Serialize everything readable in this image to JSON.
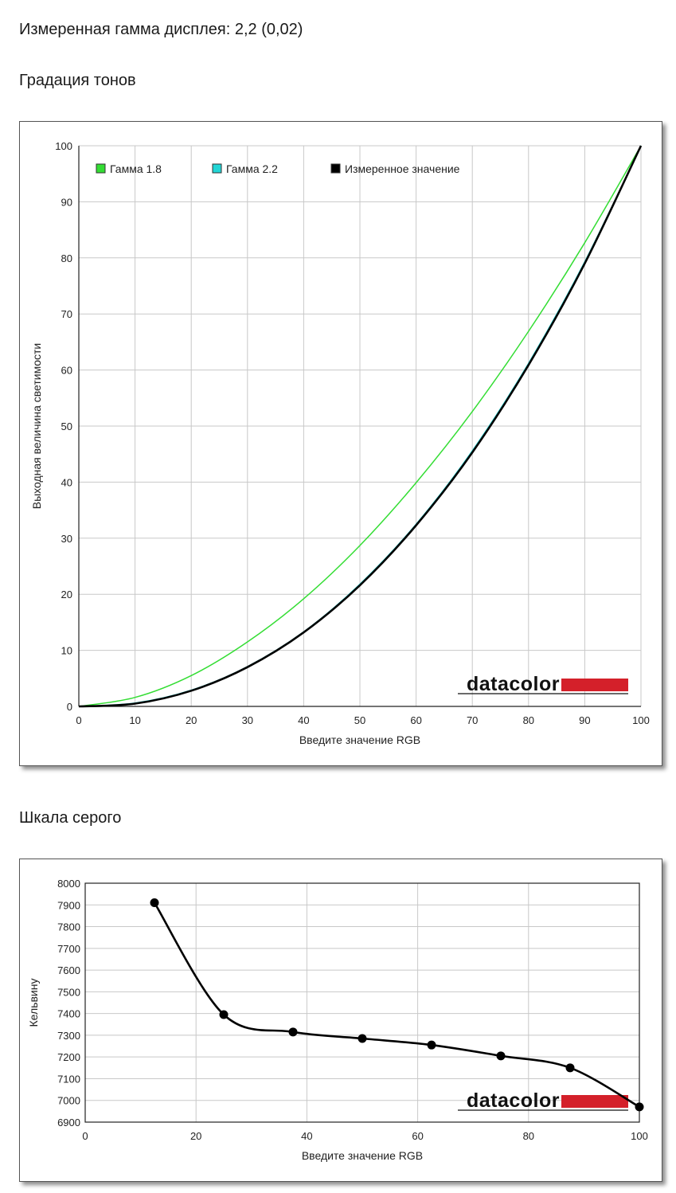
{
  "header": {
    "gamma_text": "Измеренная гамма дисплея: 2,2 (0,02)",
    "tone_heading": "Градация тонов",
    "gray_heading": "Шкала серого"
  },
  "colors": {
    "gamma18": "#33dd33",
    "gamma22": "#22d6d6",
    "measured": "#000000",
    "brand_red": "#d4202a"
  },
  "chart_data": [
    {
      "type": "line",
      "title": "",
      "xlabel": "Введите значение RGB",
      "ylabel": "Выходная величина светимости",
      "xlim": [
        0,
        100
      ],
      "ylim": [
        0,
        100
      ],
      "xticks": [
        "0",
        "10",
        "20",
        "30",
        "40",
        "50",
        "60",
        "70",
        "80",
        "90",
        "100"
      ],
      "yticks": [
        "0",
        "10",
        "20",
        "30",
        "40",
        "50",
        "60",
        "70",
        "80",
        "90",
        "100"
      ],
      "grid": true,
      "legend_position": "top-left",
      "logo": "datacolor",
      "series": [
        {
          "name": "Гамма 1.8",
          "color": "#33dd33",
          "x": [
            0,
            10,
            20,
            30,
            40,
            50,
            60,
            70,
            80,
            90,
            100
          ],
          "y": [
            0,
            1.6,
            5.5,
            11.5,
            19.2,
            28.7,
            39.9,
            52.6,
            66.9,
            82.7,
            100
          ]
        },
        {
          "name": "Гамма 2.2",
          "color": "#22d6d6",
          "x": [
            0,
            10,
            20,
            30,
            40,
            50,
            60,
            70,
            80,
            90,
            100
          ],
          "y": [
            0,
            0.6,
            2.9,
            7.1,
            13.3,
            21.8,
            32.5,
            45.6,
            61.2,
            79.3,
            100
          ]
        },
        {
          "name": "Измеренное значение",
          "color": "#000000",
          "x": [
            0,
            10,
            20,
            30,
            40,
            50,
            60,
            70,
            80,
            90,
            100
          ],
          "y": [
            0,
            0.5,
            2.8,
            7.0,
            13.2,
            21.6,
            32.3,
            45.3,
            60.9,
            79.0,
            100
          ]
        }
      ]
    },
    {
      "type": "line",
      "title": "",
      "xlabel": "Введите значение RGB",
      "ylabel": "Кельвину",
      "xlim": [
        0,
        100
      ],
      "ylim": [
        6900,
        8000
      ],
      "xticks": [
        "0",
        "20",
        "40",
        "60",
        "80",
        "100"
      ],
      "yticks": [
        "6900",
        "7000",
        "7100",
        "7200",
        "7300",
        "7400",
        "7500",
        "7600",
        "7700",
        "7800",
        "7900",
        "8000"
      ],
      "grid": true,
      "logo": "datacolor",
      "series": [
        {
          "color": "#000000",
          "x": [
            12.5,
            25,
            37.5,
            50,
            62.5,
            75,
            87.5,
            100
          ],
          "y": [
            7910,
            7395,
            7315,
            7285,
            7255,
            7205,
            7150,
            6970
          ]
        }
      ]
    }
  ]
}
